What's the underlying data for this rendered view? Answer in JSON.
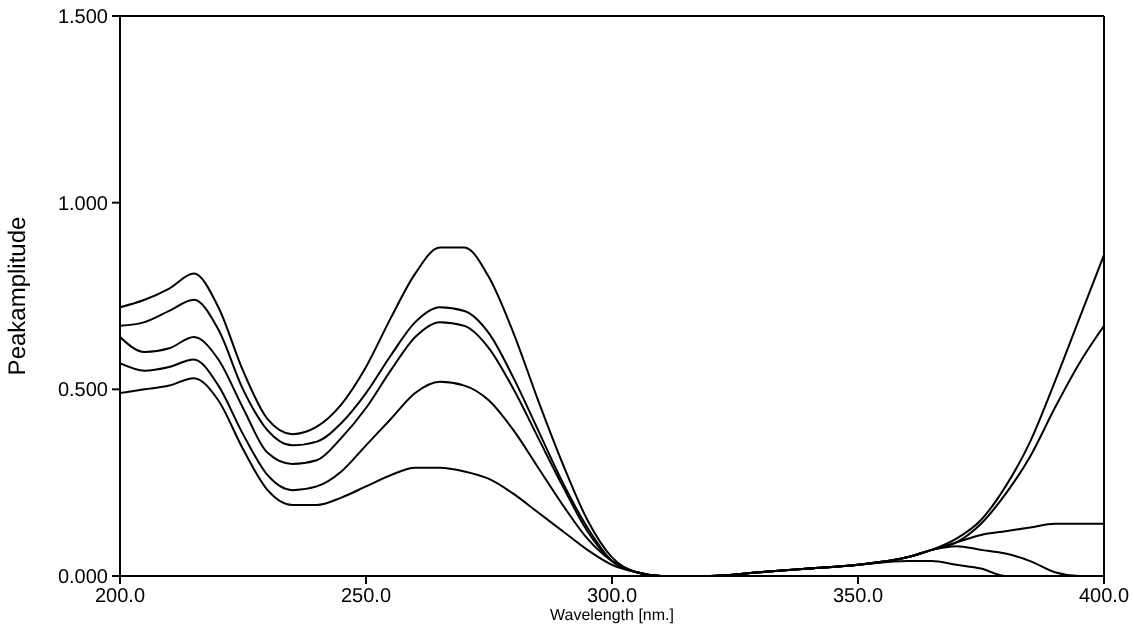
{
  "chart_data": {
    "type": "line",
    "xlabel": "Wavelength [nm.]",
    "ylabel": "Peakamplitude",
    "x": [
      200,
      205,
      210,
      215,
      220,
      225,
      230,
      235,
      240,
      245,
      250,
      255,
      260,
      265,
      270,
      275,
      280,
      285,
      290,
      295,
      300,
      305,
      310,
      320,
      330,
      340,
      350,
      360,
      365,
      370,
      375,
      380,
      385,
      390,
      395,
      400
    ],
    "series": [
      {
        "color": "#000000",
        "values": [
          0.72,
          0.74,
          0.77,
          0.81,
          0.72,
          0.55,
          0.42,
          0.38,
          0.4,
          0.46,
          0.56,
          0.69,
          0.81,
          0.88,
          0.88,
          0.8,
          0.65,
          0.47,
          0.3,
          0.15,
          0.05,
          0.01,
          0,
          0,
          0.01,
          0.02,
          0.03,
          0.05,
          0.07,
          0.1,
          0.15,
          0.24,
          0.36,
          0.52,
          0.69,
          0.86
        ]
      },
      {
        "color": "#000000",
        "values": [
          0.67,
          0.68,
          0.71,
          0.74,
          0.66,
          0.5,
          0.39,
          0.35,
          0.36,
          0.41,
          0.49,
          0.59,
          0.68,
          0.72,
          0.71,
          0.65,
          0.53,
          0.39,
          0.25,
          0.13,
          0.04,
          0.01,
          0,
          0,
          0.01,
          0.02,
          0.03,
          0.05,
          0.07,
          0.09,
          0.14,
          0.22,
          0.32,
          0.45,
          0.57,
          0.67
        ]
      },
      {
        "color": "#000000",
        "values": [
          0.64,
          0.6,
          0.61,
          0.64,
          0.58,
          0.45,
          0.33,
          0.3,
          0.31,
          0.37,
          0.45,
          0.55,
          0.64,
          0.68,
          0.67,
          0.61,
          0.5,
          0.37,
          0.24,
          0.12,
          0.04,
          0.01,
          0,
          0,
          0.01,
          0.02,
          0.03,
          0.05,
          0.07,
          0.09,
          0.11,
          0.12,
          0.13,
          0.14,
          0.14,
          0.14
        ]
      },
      {
        "color": "#000000",
        "values": [
          0.57,
          0.55,
          0.56,
          0.58,
          0.51,
          0.38,
          0.27,
          0.23,
          0.24,
          0.28,
          0.35,
          0.42,
          0.49,
          0.52,
          0.51,
          0.47,
          0.39,
          0.29,
          0.19,
          0.1,
          0.04,
          0.01,
          0,
          0,
          0.01,
          0.02,
          0.03,
          0.05,
          0.07,
          0.08,
          0.07,
          0.06,
          0.04,
          0.01,
          0,
          0
        ]
      },
      {
        "color": "#000000",
        "values": [
          0.49,
          0.5,
          0.51,
          0.53,
          0.47,
          0.34,
          0.23,
          0.19,
          0.19,
          0.21,
          0.24,
          0.27,
          0.29,
          0.29,
          0.28,
          0.26,
          0.22,
          0.17,
          0.12,
          0.07,
          0.03,
          0.01,
          0,
          0,
          0.01,
          0.02,
          0.03,
          0.04,
          0.04,
          0.03,
          0.02,
          0,
          0,
          0,
          0,
          0
        ]
      }
    ],
    "xlim": [
      200,
      400
    ],
    "xticks": [
      {
        "value": 200,
        "label": "200.0"
      },
      {
        "value": 250,
        "label": "250.0"
      },
      {
        "value": 300,
        "label": "300.0"
      },
      {
        "value": 350,
        "label": "350.0"
      },
      {
        "value": 400,
        "label": "400.0"
      }
    ],
    "ylim": [
      0,
      1.5
    ],
    "yticks": [
      {
        "value": 0,
        "label": "0.000"
      },
      {
        "value": 0.5,
        "label": "0.500"
      },
      {
        "value": 1,
        "label": "1.000"
      },
      {
        "value": 1.5,
        "label": "1.500"
      }
    ],
    "grid": false,
    "legend": false,
    "marker": "none",
    "line_style": "solid"
  }
}
